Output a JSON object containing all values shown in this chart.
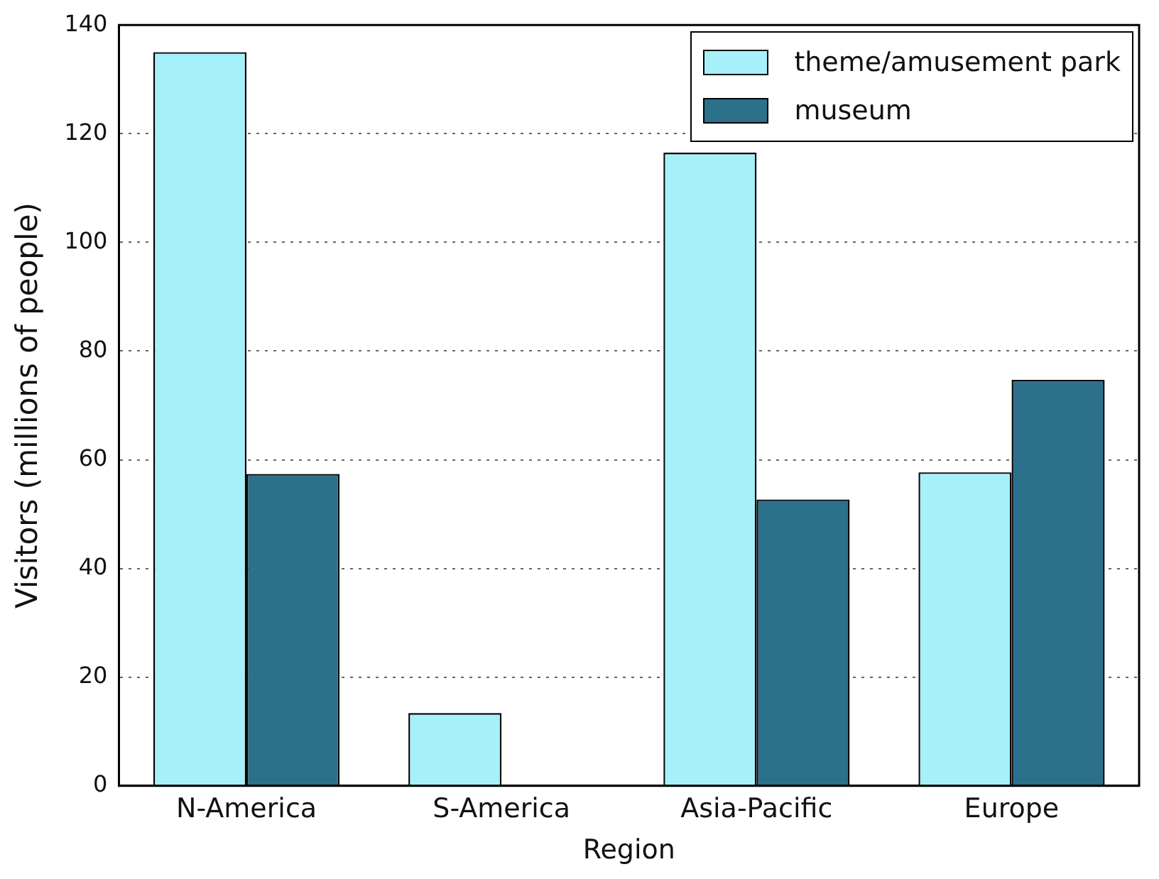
{
  "chart_data": {
    "type": "bar",
    "xlabel": "Region",
    "ylabel": "Visitors (millions of people)",
    "categories": [
      "N-America",
      "S-America",
      "Asia-Pacific",
      "Europe"
    ],
    "series": [
      {
        "name": "theme/amusement park",
        "color": "#a6f0fa",
        "values": [
          135,
          13.4,
          116.5,
          57.7
        ]
      },
      {
        "name": "museum",
        "color": "#2c718c",
        "values": [
          57.4,
          0,
          52.7,
          74.7
        ]
      }
    ],
    "ylim": [
      0,
      140
    ],
    "yticks": [
      0,
      20,
      40,
      60,
      80,
      100,
      120,
      140
    ],
    "grid": "y",
    "legend": "top right"
  }
}
